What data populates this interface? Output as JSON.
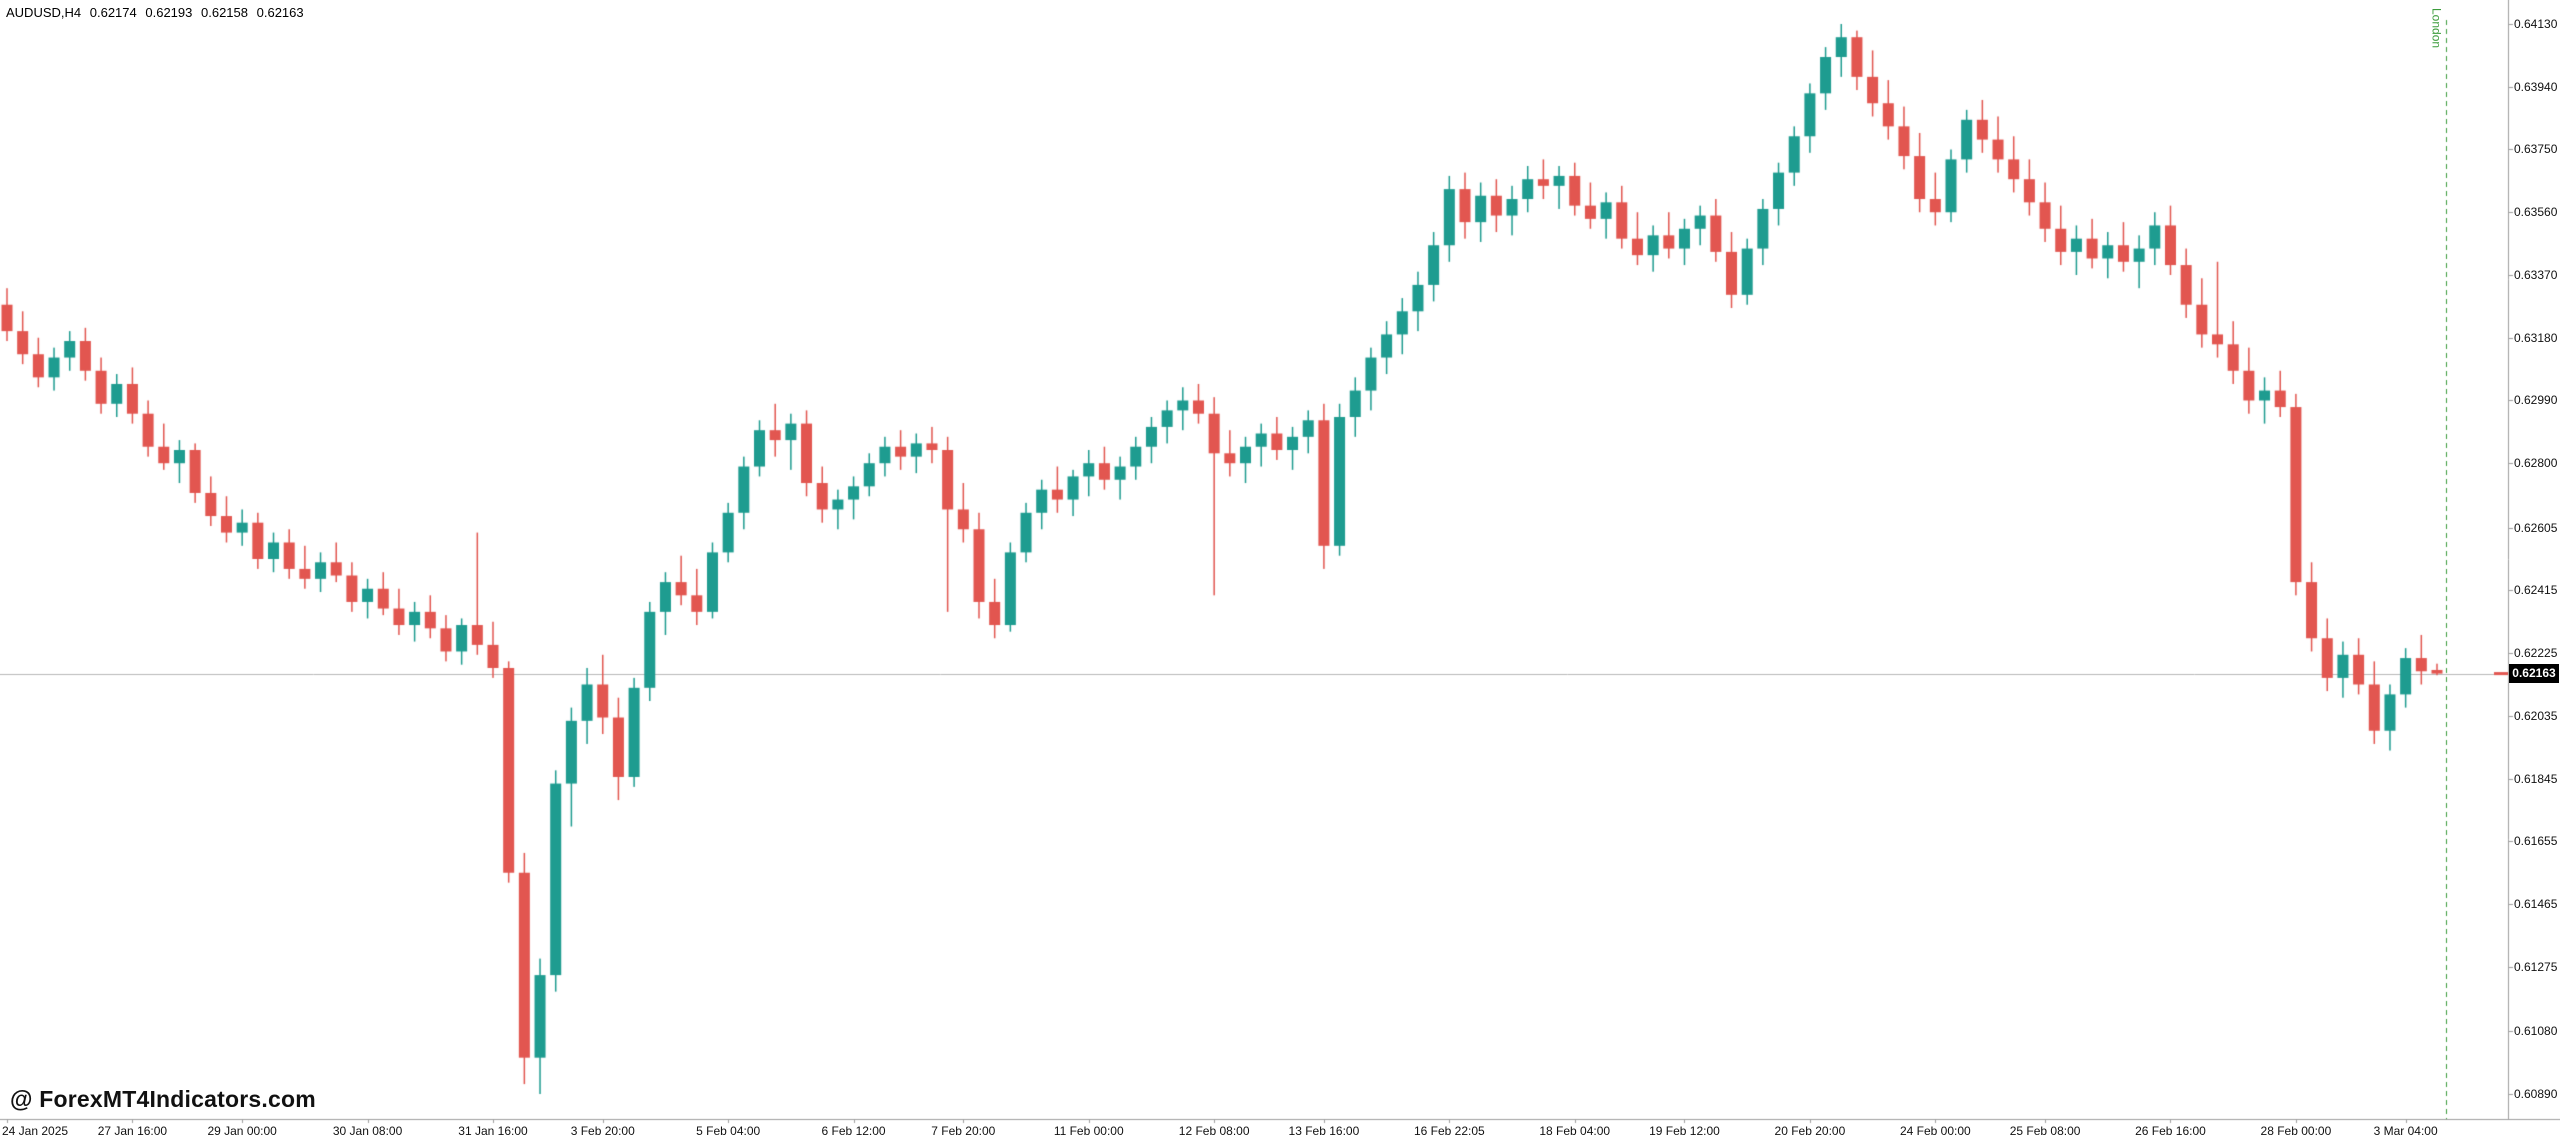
{
  "header": {
    "symbol_timeframe": "AUDUSD,H4",
    "open": "0.62174",
    "high": "0.62193",
    "low": "0.62158",
    "close": "0.62163"
  },
  "watermark": "@ ForexMT4Indicators.com",
  "session_marker": {
    "label": "London",
    "color": "#3c9c3c"
  },
  "current_price": {
    "value": "0.62163",
    "line_color": "#b8b8b8",
    "badge_bg": "#000000",
    "badge_text": "#ffffff"
  },
  "chart_data": {
    "type": "candlestick",
    "title": "AUDUSD,H4",
    "symbol": "AUDUSD",
    "timeframe": "H4",
    "up_color": "#1e9c90",
    "down_color": "#e25650",
    "axis_color": "#9e9e9e",
    "grid": false,
    "legend_position": "none",
    "ylim": [
      0.6089,
      0.6413
    ],
    "price_ticks": [
      "0.64130",
      "0.63940",
      "0.63750",
      "0.63560",
      "0.63370",
      "0.63180",
      "0.62990",
      "0.62800",
      "0.62605",
      "0.62415",
      "0.62225",
      "0.62035",
      "0.61845",
      "0.61655",
      "0.61465",
      "0.61275",
      "0.61080",
      "0.60890"
    ],
    "time_ticks": [
      {
        "label": "24 Jan 2025",
        "i": 0
      },
      {
        "label": "27 Jan 16:00",
        "i": 8
      },
      {
        "label": "29 Jan 00:00",
        "i": 15
      },
      {
        "label": "30 Jan 08:00",
        "i": 23
      },
      {
        "label": "31 Jan 16:00",
        "i": 31
      },
      {
        "label": "3 Feb 20:00",
        "i": 38
      },
      {
        "label": "5 Feb 04:00",
        "i": 46
      },
      {
        "label": "6 Feb 12:00",
        "i": 54
      },
      {
        "label": "7 Feb 20:00",
        "i": 61
      },
      {
        "label": "11 Feb 00:00",
        "i": 69
      },
      {
        "label": "12 Feb 08:00",
        "i": 77
      },
      {
        "label": "13 Feb 16:00",
        "i": 84
      },
      {
        "label": "16 Feb 22:05",
        "i": 92
      },
      {
        "label": "18 Feb 04:00",
        "i": 100
      },
      {
        "label": "19 Feb 12:00",
        "i": 107
      },
      {
        "label": "20 Feb 20:00",
        "i": 115
      },
      {
        "label": "24 Feb 00:00",
        "i": 123
      },
      {
        "label": "25 Feb 08:00",
        "i": 130
      },
      {
        "label": "26 Feb 16:00",
        "i": 138
      },
      {
        "label": "28 Feb 00:00",
        "i": 146
      },
      {
        "label": "3 Mar 04:00",
        "i": 153
      }
    ],
    "candles": [
      [
        0.6328,
        0.6333,
        0.6317,
        0.632
      ],
      [
        0.632,
        0.6326,
        0.631,
        0.6313
      ],
      [
        0.6313,
        0.6318,
        0.6303,
        0.6306
      ],
      [
        0.6306,
        0.6315,
        0.6302,
        0.6312
      ],
      [
        0.6312,
        0.632,
        0.6308,
        0.6317
      ],
      [
        0.6317,
        0.6321,
        0.6305,
        0.6308
      ],
      [
        0.6308,
        0.6312,
        0.6295,
        0.6298
      ],
      [
        0.6298,
        0.6307,
        0.6294,
        0.6304
      ],
      [
        0.6304,
        0.6309,
        0.6292,
        0.6295
      ],
      [
        0.6295,
        0.6299,
        0.6282,
        0.6285
      ],
      [
        0.6285,
        0.6292,
        0.6278,
        0.628
      ],
      [
        0.628,
        0.6287,
        0.6274,
        0.6284
      ],
      [
        0.6284,
        0.6286,
        0.6268,
        0.6271
      ],
      [
        0.6271,
        0.6276,
        0.6261,
        0.6264
      ],
      [
        0.6264,
        0.627,
        0.6256,
        0.6259
      ],
      [
        0.6259,
        0.6266,
        0.6255,
        0.6262
      ],
      [
        0.6262,
        0.6265,
        0.6248,
        0.6251
      ],
      [
        0.6251,
        0.6259,
        0.6247,
        0.6256
      ],
      [
        0.6256,
        0.626,
        0.6245,
        0.6248
      ],
      [
        0.6248,
        0.6255,
        0.6242,
        0.6245
      ],
      [
        0.6245,
        0.6253,
        0.6241,
        0.625
      ],
      [
        0.625,
        0.6256,
        0.6244,
        0.6246
      ],
      [
        0.6246,
        0.625,
        0.6235,
        0.6238
      ],
      [
        0.6238,
        0.6245,
        0.6233,
        0.6242
      ],
      [
        0.6242,
        0.6247,
        0.6234,
        0.6236
      ],
      [
        0.6236,
        0.6242,
        0.6228,
        0.6231
      ],
      [
        0.6231,
        0.6238,
        0.6226,
        0.6235
      ],
      [
        0.6235,
        0.624,
        0.6227,
        0.623
      ],
      [
        0.623,
        0.6234,
        0.622,
        0.6223
      ],
      [
        0.6223,
        0.6233,
        0.6219,
        0.6231
      ],
      [
        0.6231,
        0.6259,
        0.6222,
        0.6225
      ],
      [
        0.6225,
        0.6232,
        0.6215,
        0.6218
      ],
      [
        0.6218,
        0.622,
        0.6153,
        0.6156
      ],
      [
        0.6156,
        0.6162,
        0.6092,
        0.61
      ],
      [
        0.61,
        0.613,
        0.6089,
        0.6125
      ],
      [
        0.6125,
        0.6187,
        0.612,
        0.6183
      ],
      [
        0.6183,
        0.6206,
        0.617,
        0.6202
      ],
      [
        0.6202,
        0.6218,
        0.6195,
        0.6213
      ],
      [
        0.6213,
        0.6222,
        0.6198,
        0.6203
      ],
      [
        0.6203,
        0.6209,
        0.6178,
        0.6185
      ],
      [
        0.6185,
        0.6215,
        0.6182,
        0.6212
      ],
      [
        0.6212,
        0.6238,
        0.6208,
        0.6235
      ],
      [
        0.6235,
        0.6247,
        0.6228,
        0.6244
      ],
      [
        0.6244,
        0.6252,
        0.6237,
        0.624
      ],
      [
        0.624,
        0.6248,
        0.6231,
        0.6235
      ],
      [
        0.6235,
        0.6256,
        0.6233,
        0.6253
      ],
      [
        0.6253,
        0.6268,
        0.625,
        0.6265
      ],
      [
        0.6265,
        0.6282,
        0.626,
        0.6279
      ],
      [
        0.6279,
        0.6293,
        0.6276,
        0.629
      ],
      [
        0.629,
        0.6298,
        0.6282,
        0.6287
      ],
      [
        0.6287,
        0.6295,
        0.6278,
        0.6292
      ],
      [
        0.6292,
        0.6296,
        0.627,
        0.6274
      ],
      [
        0.6274,
        0.6279,
        0.6262,
        0.6266
      ],
      [
        0.6266,
        0.6272,
        0.626,
        0.6269
      ],
      [
        0.6269,
        0.6276,
        0.6263,
        0.6273
      ],
      [
        0.6273,
        0.6283,
        0.627,
        0.628
      ],
      [
        0.628,
        0.6288,
        0.6276,
        0.6285
      ],
      [
        0.6285,
        0.629,
        0.6278,
        0.6282
      ],
      [
        0.6282,
        0.6289,
        0.6277,
        0.6286
      ],
      [
        0.6286,
        0.6291,
        0.628,
        0.6284
      ],
      [
        0.6284,
        0.6288,
        0.6235,
        0.6266
      ],
      [
        0.6266,
        0.6274,
        0.6256,
        0.626
      ],
      [
        0.626,
        0.6265,
        0.6233,
        0.6238
      ],
      [
        0.6238,
        0.6245,
        0.6227,
        0.6231
      ],
      [
        0.6231,
        0.6256,
        0.6229,
        0.6253
      ],
      [
        0.6253,
        0.6268,
        0.625,
        0.6265
      ],
      [
        0.6265,
        0.6275,
        0.626,
        0.6272
      ],
      [
        0.6272,
        0.6279,
        0.6265,
        0.6269
      ],
      [
        0.6269,
        0.6278,
        0.6264,
        0.6276
      ],
      [
        0.6276,
        0.6284,
        0.627,
        0.628
      ],
      [
        0.628,
        0.6285,
        0.6272,
        0.6275
      ],
      [
        0.6275,
        0.6282,
        0.6269,
        0.6279
      ],
      [
        0.6279,
        0.6288,
        0.6275,
        0.6285
      ],
      [
        0.6285,
        0.6294,
        0.628,
        0.6291
      ],
      [
        0.6291,
        0.6299,
        0.6286,
        0.6296
      ],
      [
        0.6296,
        0.6303,
        0.629,
        0.6299
      ],
      [
        0.6299,
        0.6304,
        0.6292,
        0.6295
      ],
      [
        0.6295,
        0.63,
        0.624,
        0.6283
      ],
      [
        0.6283,
        0.629,
        0.6276,
        0.628
      ],
      [
        0.628,
        0.6288,
        0.6274,
        0.6285
      ],
      [
        0.6285,
        0.6292,
        0.6279,
        0.6289
      ],
      [
        0.6289,
        0.6294,
        0.6281,
        0.6284
      ],
      [
        0.6284,
        0.6291,
        0.6278,
        0.6288
      ],
      [
        0.6288,
        0.6296,
        0.6283,
        0.6293
      ],
      [
        0.6293,
        0.6298,
        0.6248,
        0.6255
      ],
      [
        0.6255,
        0.6298,
        0.6252,
        0.6294
      ],
      [
        0.6294,
        0.6306,
        0.6288,
        0.6302
      ],
      [
        0.6302,
        0.6315,
        0.6296,
        0.6312
      ],
      [
        0.6312,
        0.6323,
        0.6307,
        0.6319
      ],
      [
        0.6319,
        0.633,
        0.6313,
        0.6326
      ],
      [
        0.6326,
        0.6338,
        0.632,
        0.6334
      ],
      [
        0.6334,
        0.635,
        0.6329,
        0.6346
      ],
      [
        0.6346,
        0.6367,
        0.6341,
        0.6363
      ],
      [
        0.6363,
        0.6368,
        0.6348,
        0.6353
      ],
      [
        0.6353,
        0.6365,
        0.6347,
        0.6361
      ],
      [
        0.6361,
        0.6366,
        0.635,
        0.6355
      ],
      [
        0.6355,
        0.6364,
        0.6349,
        0.636
      ],
      [
        0.636,
        0.637,
        0.6356,
        0.6366
      ],
      [
        0.6366,
        0.6372,
        0.636,
        0.6364
      ],
      [
        0.6364,
        0.637,
        0.6357,
        0.6367
      ],
      [
        0.6367,
        0.6371,
        0.6355,
        0.6358
      ],
      [
        0.6358,
        0.6365,
        0.6351,
        0.6354
      ],
      [
        0.6354,
        0.6362,
        0.6348,
        0.6359
      ],
      [
        0.6359,
        0.6364,
        0.6345,
        0.6348
      ],
      [
        0.6348,
        0.6356,
        0.634,
        0.6343
      ],
      [
        0.6343,
        0.6352,
        0.6338,
        0.6349
      ],
      [
        0.6349,
        0.6356,
        0.6342,
        0.6345
      ],
      [
        0.6345,
        0.6354,
        0.634,
        0.6351
      ],
      [
        0.6351,
        0.6358,
        0.6346,
        0.6355
      ],
      [
        0.6355,
        0.636,
        0.6341,
        0.6344
      ],
      [
        0.6344,
        0.635,
        0.6327,
        0.6331
      ],
      [
        0.6331,
        0.6348,
        0.6328,
        0.6345
      ],
      [
        0.6345,
        0.636,
        0.634,
        0.6357
      ],
      [
        0.6357,
        0.6371,
        0.6352,
        0.6368
      ],
      [
        0.6368,
        0.6382,
        0.6364,
        0.6379
      ],
      [
        0.6379,
        0.6395,
        0.6374,
        0.6392
      ],
      [
        0.6392,
        0.6406,
        0.6387,
        0.6403
      ],
      [
        0.6403,
        0.6413,
        0.6397,
        0.6409
      ],
      [
        0.6409,
        0.6411,
        0.6393,
        0.6397
      ],
      [
        0.6397,
        0.6405,
        0.6385,
        0.6389
      ],
      [
        0.6389,
        0.6396,
        0.6378,
        0.6382
      ],
      [
        0.6382,
        0.6388,
        0.6369,
        0.6373
      ],
      [
        0.6373,
        0.638,
        0.6356,
        0.636
      ],
      [
        0.636,
        0.6368,
        0.6352,
        0.6356
      ],
      [
        0.6356,
        0.6375,
        0.6353,
        0.6372
      ],
      [
        0.6372,
        0.6387,
        0.6368,
        0.6384
      ],
      [
        0.6384,
        0.639,
        0.6374,
        0.6378
      ],
      [
        0.6378,
        0.6385,
        0.6368,
        0.6372
      ],
      [
        0.6372,
        0.6379,
        0.6362,
        0.6366
      ],
      [
        0.6366,
        0.6372,
        0.6355,
        0.6359
      ],
      [
        0.6359,
        0.6365,
        0.6347,
        0.6351
      ],
      [
        0.6351,
        0.6358,
        0.634,
        0.6344
      ],
      [
        0.6344,
        0.6352,
        0.6337,
        0.6348
      ],
      [
        0.6348,
        0.6354,
        0.6339,
        0.6342
      ],
      [
        0.6342,
        0.635,
        0.6336,
        0.6346
      ],
      [
        0.6346,
        0.6353,
        0.6338,
        0.6341
      ],
      [
        0.6341,
        0.6349,
        0.6333,
        0.6345
      ],
      [
        0.6345,
        0.6356,
        0.634,
        0.6352
      ],
      [
        0.6352,
        0.6358,
        0.6337,
        0.634
      ],
      [
        0.634,
        0.6345,
        0.6324,
        0.6328
      ],
      [
        0.6328,
        0.6336,
        0.6315,
        0.6319
      ],
      [
        0.6319,
        0.6341,
        0.6312,
        0.6316
      ],
      [
        0.6316,
        0.6323,
        0.6304,
        0.6308
      ],
      [
        0.6308,
        0.6315,
        0.6295,
        0.6299
      ],
      [
        0.6299,
        0.6306,
        0.6292,
        0.6302
      ],
      [
        0.6302,
        0.6308,
        0.6294,
        0.6297
      ],
      [
        0.6297,
        0.6301,
        0.624,
        0.6244
      ],
      [
        0.6244,
        0.625,
        0.6223,
        0.6227
      ],
      [
        0.6227,
        0.6233,
        0.6211,
        0.6215
      ],
      [
        0.6215,
        0.6226,
        0.6209,
        0.6222
      ],
      [
        0.6222,
        0.6227,
        0.621,
        0.6213
      ],
      [
        0.6213,
        0.622,
        0.6195,
        0.6199
      ],
      [
        0.6199,
        0.6213,
        0.6193,
        0.621
      ],
      [
        0.621,
        0.6224,
        0.6206,
        0.6221
      ],
      [
        0.6221,
        0.6228,
        0.6213,
        0.6217
      ],
      [
        0.62174,
        0.62193,
        0.62158,
        0.62163
      ]
    ]
  }
}
